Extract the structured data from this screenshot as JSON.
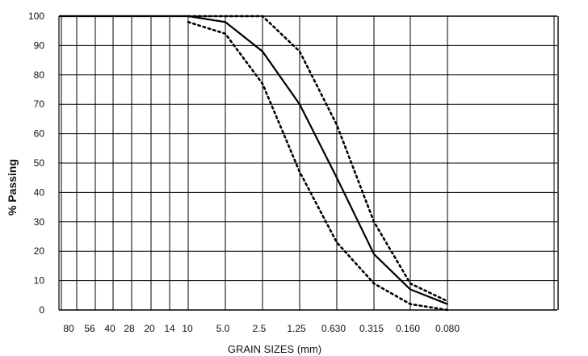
{
  "chart_data": {
    "type": "line",
    "xlabel": "GRAIN SIZES (mm)",
    "ylabel": "% Passing",
    "ylim": [
      0,
      100
    ],
    "grid": true,
    "y_ticks": [
      0,
      10,
      20,
      30,
      40,
      50,
      60,
      70,
      80,
      90,
      100
    ],
    "categories": [
      "80",
      "56",
      "40",
      "28",
      "20",
      "14",
      "10",
      "5.0",
      "2.5",
      "1.25",
      "0.630",
      "0.315",
      "0.160",
      "0.080"
    ],
    "series": [
      {
        "style": "solid",
        "points": [
          {
            "x": "10",
            "y": 100
          },
          {
            "x": "5.0",
            "y": 98
          },
          {
            "x": "2.5",
            "y": 88
          },
          {
            "x": "1.25",
            "y": 70
          },
          {
            "x": "0.630",
            "y": 45
          },
          {
            "x": "0.315",
            "y": 19
          },
          {
            "x": "0.160",
            "y": 7
          },
          {
            "x": "0.080",
            "y": 2
          }
        ]
      },
      {
        "style": "dotted",
        "points": [
          {
            "x": "10",
            "y": 100
          },
          {
            "x": "5.0",
            "y": 100
          },
          {
            "x": "2.5",
            "y": 100
          },
          {
            "x": "1.25",
            "y": 88
          },
          {
            "x": "0.630",
            "y": 63
          },
          {
            "x": "0.315",
            "y": 30
          },
          {
            "x": "0.160",
            "y": 9
          },
          {
            "x": "0.080",
            "y": 3
          }
        ]
      },
      {
        "style": "dotted",
        "points": [
          {
            "x": "10",
            "y": 98
          },
          {
            "x": "5.0",
            "y": 94
          },
          {
            "x": "2.5",
            "y": 77
          },
          {
            "x": "1.25",
            "y": 47
          },
          {
            "x": "0.630",
            "y": 23
          },
          {
            "x": "0.315",
            "y": 9
          },
          {
            "x": "0.160",
            "y": 2
          },
          {
            "x": "0.080",
            "y": 0
          }
        ]
      }
    ]
  }
}
